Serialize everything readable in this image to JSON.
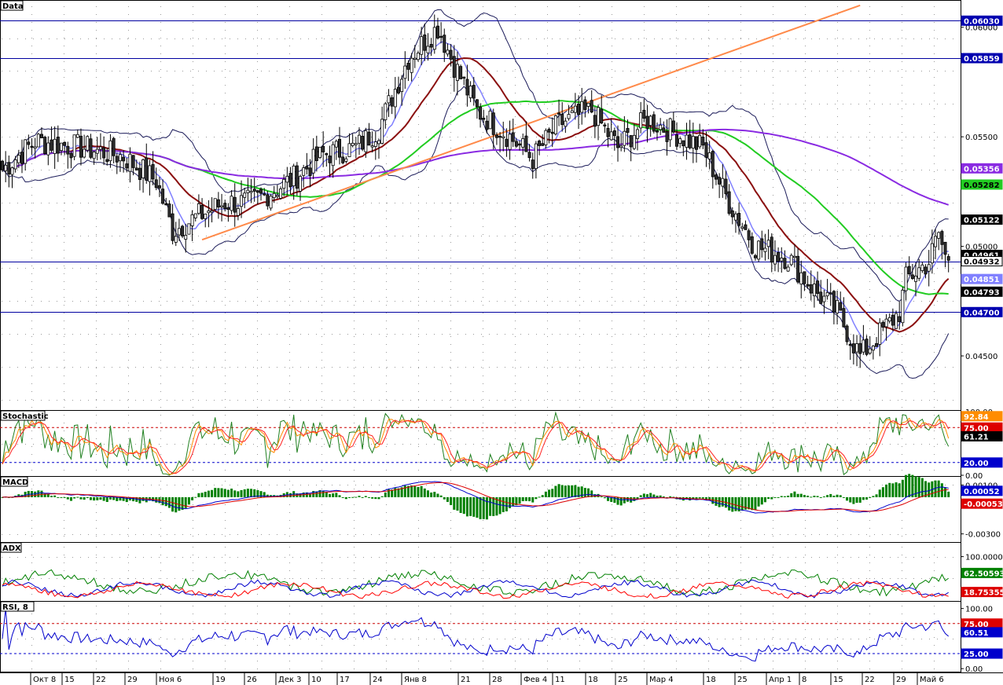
{
  "window": {
    "main_title": "Data"
  },
  "colors": {
    "background": "#ffffff",
    "pane_bg": "#ffffff",
    "grid_dot": "#9a9a9a",
    "candle_up": "#ffffff",
    "candle_down": "#303030",
    "bollinger": "#1c1c5a",
    "sma_fast": "#8080ff",
    "sma_mid": "#8b1010",
    "sma_slow": "#22cc22",
    "sma_long": "#8a2be2",
    "trendline": "#ff8a4a",
    "hline": "#0000a0",
    "stoch_k": "#ff8c00",
    "stoch_d": "#ff2020",
    "stoch_raw": "#208020",
    "macd_line": "#0000cc",
    "macd_signal": "#dd0000",
    "macd_hist": "#008000",
    "adx_main": "#008000",
    "adx_plus": "#0000cc",
    "adx_minus": "#ff0000",
    "rsi_line": "#0000cc",
    "level_high": "#cc0000",
    "level_low": "#0000cc"
  },
  "chart_data": [
    {
      "type": "candlestick",
      "pane": "main",
      "title": "Data",
      "ylim": [
        0.0426,
        0.0611
      ],
      "yticks": [
        "0.06000",
        "0.05500",
        "0.05000",
        "0.04500"
      ],
      "x_labels": [
        "Окт 8",
        "15",
        "22",
        "29",
        "Ноя 6",
        "19",
        "26",
        "Дек 3",
        "10",
        "17",
        "24",
        "Янв 8",
        "21",
        "28",
        "Фев 4",
        "11",
        "18",
        "25",
        "Мар 4",
        "18",
        "25",
        "Апр 1",
        "8",
        "15",
        "22",
        "29",
        "Май 6"
      ],
      "anchors": [
        [
          0,
          0.0535
        ],
        [
          10,
          0.0548
        ],
        [
          25,
          0.0545
        ],
        [
          37,
          0.0541
        ],
        [
          47,
          0.053
        ],
        [
          52,
          0.0507
        ],
        [
          60,
          0.0514
        ],
        [
          68,
          0.052
        ],
        [
          76,
          0.052
        ],
        [
          88,
          0.053
        ],
        [
          98,
          0.0542
        ],
        [
          108,
          0.0545
        ],
        [
          115,
          0.0554
        ],
        [
          124,
          0.0586
        ],
        [
          133,
          0.06
        ],
        [
          138,
          0.0583
        ],
        [
          145,
          0.0562
        ],
        [
          155,
          0.055
        ],
        [
          162,
          0.054
        ],
        [
          170,
          0.0556
        ],
        [
          180,
          0.0562
        ],
        [
          188,
          0.0545
        ],
        [
          197,
          0.0558
        ],
        [
          205,
          0.0552
        ],
        [
          214,
          0.0545
        ],
        [
          222,
          0.052
        ],
        [
          230,
          0.05
        ],
        [
          240,
          0.0495
        ],
        [
          248,
          0.048
        ],
        [
          255,
          0.047
        ],
        [
          262,
          0.045
        ],
        [
          268,
          0.046
        ],
        [
          274,
          0.047
        ],
        [
          276,
          0.0485
        ],
        [
          283,
          0.0493
        ],
        [
          286,
          0.0506
        ],
        [
          288,
          0.0495
        ]
      ],
      "indicators": [
        {
          "name": "Bollinger",
          "label": "",
          "color_key": "bollinger"
        },
        {
          "name": "SMA 8",
          "label": "",
          "color_key": "sma_fast",
          "period": 8
        },
        {
          "name": "SMA 21",
          "label": "",
          "color_key": "sma_mid",
          "period": 21
        },
        {
          "name": "SMA 55",
          "label": "",
          "color_key": "sma_slow",
          "period": 55
        },
        {
          "name": "SMA 144",
          "label": "",
          "color_key": "sma_long",
          "period": 144
        }
      ],
      "trendline": {
        "from": [
          61,
          0.0503
        ],
        "to": [
          262,
          0.061
        ]
      },
      "horizontal_lines": [
        0.0603,
        0.05859,
        0.04932,
        0.047
      ],
      "price_tags": [
        {
          "label": "0.06030",
          "value": 0.0603,
          "bg": "#0000b0",
          "fg": "#ffffff"
        },
        {
          "label": "0.05859",
          "value": 0.05859,
          "bg": "#0000b0",
          "fg": "#ffffff"
        },
        {
          "label": "0.05356",
          "value": 0.05356,
          "bg": "#8a2be2",
          "fg": "#ffffff"
        },
        {
          "label": "0.05282",
          "value": 0.05282,
          "bg": "#22cc22",
          "fg": "#000000"
        },
        {
          "label": "0.05122",
          "value": 0.05122,
          "bg": "#000000",
          "fg": "#ffffff"
        },
        {
          "label": "0.04961",
          "value": 0.04961,
          "bg": "#000000",
          "fg": "#ffffff"
        },
        {
          "label": "0.04932",
          "value": 0.04932,
          "bg": "#ffffff",
          "fg": "#000000"
        },
        {
          "label": "0.04851",
          "value": 0.04851,
          "bg": "#8080ff",
          "fg": "#ffffff"
        },
        {
          "label": "0.04793",
          "value": 0.04793,
          "bg": "#000000",
          "fg": "#ffffff"
        },
        {
          "label": "0.04700",
          "value": 0.047,
          "bg": "#0000b0",
          "fg": "#ffffff"
        }
      ]
    },
    {
      "type": "line",
      "pane": "stochastic",
      "title": "Stochastic",
      "ylim": [
        0,
        100
      ],
      "yticks": [
        "100.00",
        "0.00"
      ],
      "levels": [
        75,
        20
      ],
      "series": [
        {
          "key": "raw",
          "color_key": "stoch_raw"
        },
        {
          "key": "k",
          "color_key": "stoch_k"
        },
        {
          "key": "d",
          "color_key": "stoch_d"
        }
      ],
      "tags": [
        {
          "label": "92.84",
          "value": 92.84,
          "bg": "#ff8c00",
          "fg": "#ffffff"
        },
        {
          "label": "75.00",
          "value": 75,
          "bg": "#dd0000",
          "fg": "#ffffff"
        },
        {
          "label": "61.21",
          "value": 61.21,
          "bg": "#000000",
          "fg": "#ffffff"
        },
        {
          "label": "20.00",
          "value": 20,
          "bg": "#0000cc",
          "fg": "#ffffff"
        }
      ]
    },
    {
      "type": "line",
      "pane": "macd",
      "title": "MACD",
      "ylim": [
        -0.0036,
        0.0016
      ],
      "yticks": [
        "0.00100",
        "-0.00300"
      ],
      "series": [
        {
          "key": "macd",
          "color_key": "macd_line"
        },
        {
          "key": "signal",
          "color_key": "macd_signal"
        },
        {
          "key": "hist",
          "color_key": "macd_hist"
        }
      ],
      "tags": [
        {
          "label": "0.00052",
          "value": 0.00052,
          "bg": "#0000cc",
          "fg": "#ffffff"
        },
        {
          "label": "-0.00053",
          "value": -0.00053,
          "bg": "#dd0000",
          "fg": "#ffffff"
        }
      ]
    },
    {
      "type": "line",
      "pane": "adx",
      "title": "ADX",
      "ylim": [
        0,
        130
      ],
      "yticks": [
        "100.00000"
      ],
      "series": [
        {
          "key": "adx",
          "color_key": "adx_main"
        },
        {
          "key": "plus",
          "color_key": "adx_plus"
        },
        {
          "key": "minus",
          "color_key": "adx_minus"
        }
      ],
      "tags": [
        {
          "label": "62.50593",
          "value": 62.50593,
          "bg": "#008000",
          "fg": "#ffffff"
        },
        {
          "label": "18.75355",
          "value": 18.75355,
          "bg": "#dd0000",
          "fg": "#ffffff"
        }
      ]
    },
    {
      "type": "line",
      "pane": "rsi",
      "title": "RSI, 8",
      "ylim": [
        -5,
        110
      ],
      "yticks": [
        "100.00",
        "0.00"
      ],
      "levels": [
        75,
        25
      ],
      "series": [
        {
          "key": "rsi",
          "color_key": "rsi_line"
        }
      ],
      "tags": [
        {
          "label": "75.00",
          "value": 75,
          "bg": "#dd0000",
          "fg": "#ffffff"
        },
        {
          "label": "60.51",
          "value": 60.51,
          "bg": "#0000cc",
          "fg": "#ffffff"
        },
        {
          "label": "25.00",
          "value": 25,
          "bg": "#0000cc",
          "fg": "#ffffff"
        }
      ]
    }
  ]
}
